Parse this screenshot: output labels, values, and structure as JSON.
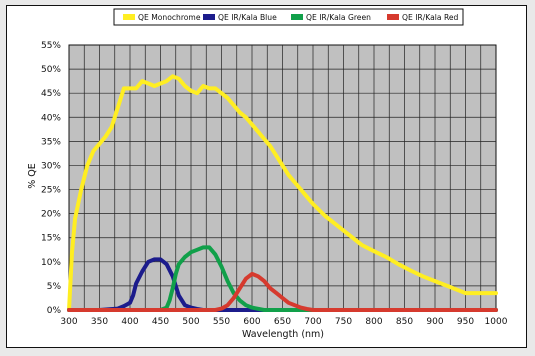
{
  "chart_data": {
    "type": "line",
    "xlabel": "Wavelength (nm)",
    "ylabel": "% QE",
    "xlim": [
      300,
      1000
    ],
    "ylim": [
      0,
      55
    ],
    "xticks": [
      300,
      350,
      400,
      450,
      500,
      550,
      600,
      650,
      700,
      750,
      800,
      850,
      900,
      950,
      1000
    ],
    "yticks": [
      0,
      5,
      10,
      15,
      20,
      25,
      30,
      35,
      40,
      45,
      50,
      55
    ],
    "ytick_labels": [
      "0%",
      "5%",
      "10%",
      "15%",
      "20%",
      "25%",
      "30%",
      "35%",
      "40%",
      "45%",
      "50%",
      "55%"
    ],
    "grid": true,
    "legend_position": "top",
    "plot_background": "#c0c0c0",
    "series": [
      {
        "name": "QE Monochrome",
        "color": "#ffee22",
        "x": [
          300,
          305,
          310,
          320,
          330,
          340,
          350,
          360,
          370,
          380,
          390,
          400,
          410,
          420,
          430,
          440,
          450,
          460,
          470,
          480,
          490,
          500,
          510,
          520,
          530,
          540,
          550,
          560,
          570,
          580,
          590,
          600,
          610,
          620,
          630,
          640,
          650,
          660,
          670,
          680,
          690,
          700,
          720,
          740,
          760,
          780,
          800,
          820,
          840,
          860,
          880,
          900,
          920,
          940,
          950,
          960,
          980,
          1000
        ],
        "values": [
          0,
          12,
          19,
          25,
          30,
          33,
          34.5,
          36,
          38,
          42,
          46,
          46,
          46,
          47.5,
          47,
          46.5,
          47,
          47.5,
          48.5,
          48,
          46.5,
          45.5,
          45,
          46.5,
          46,
          46,
          45,
          44,
          42.5,
          41,
          40,
          38.5,
          37,
          35.5,
          34,
          32,
          30,
          28,
          26.5,
          25,
          23.5,
          22,
          19.5,
          17.5,
          15.5,
          13.5,
          12.2,
          11,
          9.5,
          8.2,
          7,
          6,
          5,
          4,
          3.5,
          3.5,
          3.5,
          3.5
        ]
      },
      {
        "name": "QE IR/Kala Blue",
        "color": "#1c1c8c",
        "x": [
          300,
          350,
          380,
          390,
          400,
          405,
          410,
          420,
          430,
          440,
          450,
          455,
          460,
          470,
          480,
          490,
          500,
          510,
          520,
          550,
          1000
        ],
        "values": [
          0,
          0,
          0.3,
          0.8,
          1.5,
          3,
          5.5,
          8,
          10,
          10.5,
          10.5,
          10,
          9.5,
          7,
          3,
          1,
          0.5,
          0.2,
          0,
          0,
          0
        ]
      },
      {
        "name": "QE IR/Kala Green",
        "color": "#11a04a",
        "x": [
          300,
          450,
          460,
          465,
          470,
          475,
          480,
          490,
          500,
          510,
          520,
          530,
          540,
          550,
          560,
          570,
          580,
          590,
          600,
          620,
          1000
        ],
        "values": [
          0,
          0,
          0.5,
          2,
          4.5,
          7.5,
          9.5,
          11,
          12,
          12.5,
          13,
          13,
          11.5,
          9,
          6,
          3.5,
          2,
          1,
          0.5,
          0,
          0
        ]
      },
      {
        "name": "QE IR/Kala Red",
        "color": "#d63a2e",
        "x": [
          300,
          540,
          550,
          560,
          570,
          580,
          590,
          600,
          610,
          620,
          630,
          640,
          650,
          660,
          670,
          680,
          690,
          700,
          1000
        ],
        "values": [
          0,
          0,
          0.3,
          1,
          2.5,
          4.5,
          6.5,
          7.5,
          7,
          6,
          4.5,
          3.5,
          2.5,
          1.5,
          1,
          0.5,
          0.2,
          0,
          0
        ]
      }
    ]
  }
}
